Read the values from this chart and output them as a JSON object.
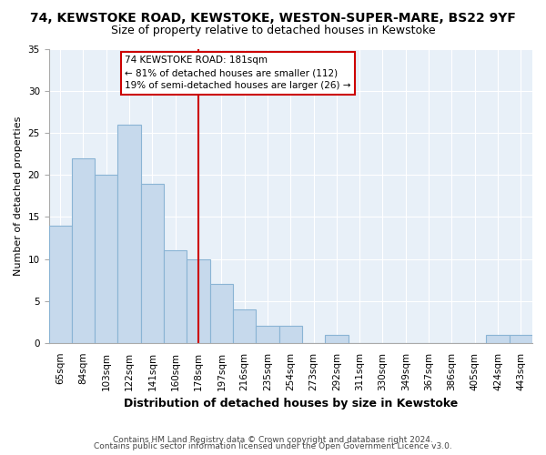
{
  "title": "74, KEWSTOKE ROAD, KEWSTOKE, WESTON-SUPER-MARE, BS22 9YF",
  "subtitle": "Size of property relative to detached houses in Kewstoke",
  "xlabel": "Distribution of detached houses by size in Kewstoke",
  "ylabel": "Number of detached properties",
  "bar_labels": [
    "65sqm",
    "84sqm",
    "103sqm",
    "122sqm",
    "141sqm",
    "160sqm",
    "178sqm",
    "197sqm",
    "216sqm",
    "235sqm",
    "254sqm",
    "273sqm",
    "292sqm",
    "311sqm",
    "330sqm",
    "349sqm",
    "367sqm",
    "386sqm",
    "405sqm",
    "424sqm",
    "443sqm"
  ],
  "bar_values": [
    14,
    22,
    20,
    26,
    19,
    11,
    10,
    7,
    4,
    2,
    2,
    0,
    1,
    0,
    0,
    0,
    0,
    0,
    0,
    1,
    1
  ],
  "bar_color": "#c6d9ec",
  "bar_edge_color": "#8ab4d4",
  "vline_x_idx": 6,
  "vline_color": "#cc0000",
  "annotation_title": "74 KEWSTOKE ROAD: 181sqm",
  "annotation_line1": "← 81% of detached houses are smaller (112)",
  "annotation_line2": "19% of semi-detached houses are larger (26) →",
  "annotation_box_color": "#ffffff",
  "annotation_box_edge_color": "#cc0000",
  "ylim": [
    0,
    35
  ],
  "yticks": [
    0,
    5,
    10,
    15,
    20,
    25,
    30,
    35
  ],
  "footer1": "Contains HM Land Registry data © Crown copyright and database right 2024.",
  "footer2": "Contains public sector information licensed under the Open Government Licence v3.0.",
  "bg_color": "#ffffff",
  "plot_bg_color": "#e8f0f8",
  "grid_color": "#ffffff",
  "title_fontsize": 10,
  "subtitle_fontsize": 9,
  "ylabel_fontsize": 8,
  "xlabel_fontsize": 9,
  "tick_fontsize": 7.5,
  "footer_fontsize": 6.5
}
